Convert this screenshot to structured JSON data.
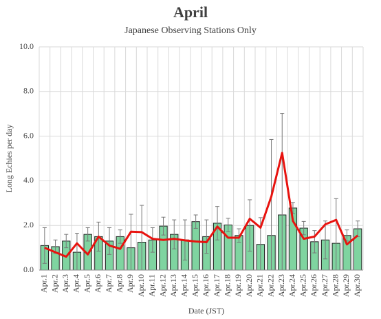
{
  "chart_data": {
    "type": "bar",
    "title": "April",
    "subtitle": "Japanese Observing Stations Only",
    "x_label": "Date (JST)",
    "y_label": "Long Echies per day",
    "categories": [
      "Apr.1",
      "Apr.2",
      "Apr.3",
      "Apr.4",
      "Apr.5",
      "Apr.6",
      "Apr.7",
      "Apr.8",
      "Apr.9",
      "Apr.10",
      "Apr.11",
      "Apr.12",
      "Apr.13",
      "Apr.14",
      "Apr.15",
      "Apr.16",
      "Apr.17",
      "Apr.18",
      "Apr.19",
      "Apr.20",
      "Apr.21",
      "Apr.22",
      "Apr.23",
      "Apr.24",
      "Apr.25",
      "Apr.26",
      "Apr.27",
      "Apr.28",
      "Apr.29",
      "Apr.30"
    ],
    "series": [
      {
        "type": "bar",
        "color": "#7fd4a0",
        "values": [
          1.1,
          1.05,
          1.3,
          0.8,
          1.6,
          1.5,
          1.3,
          1.5,
          1.0,
          1.25,
          1.35,
          1.97,
          1.6,
          1.35,
          2.17,
          1.5,
          2.1,
          2.02,
          1.55,
          2.0,
          1.15,
          1.55,
          2.47,
          2.78,
          1.88,
          1.27,
          1.35,
          1.2,
          1.55,
          1.85
        ],
        "errors": [
          0.8,
          0.3,
          0.3,
          0.85,
          0.3,
          0.65,
          0.6,
          0.3,
          1.5,
          1.65,
          0.55,
          0.4,
          0.65,
          0.9,
          0.3,
          0.75,
          0.75,
          0.3,
          0.3,
          1.15,
          1.2,
          4.3,
          4.55,
          0.25,
          0.3,
          0.5,
          0.85,
          2.0,
          0.25,
          0.35
        ]
      },
      {
        "type": "line",
        "color": "#e8130f",
        "values": [
          1.0,
          0.8,
          0.6,
          1.2,
          0.7,
          1.5,
          1.1,
          0.95,
          1.72,
          1.7,
          1.4,
          1.35,
          1.4,
          1.33,
          1.28,
          1.25,
          1.95,
          1.45,
          1.45,
          2.3,
          1.9,
          3.3,
          5.25,
          2.2,
          1.4,
          1.5,
          2.05,
          2.25,
          1.15,
          1.55
        ]
      }
    ],
    "ylim": [
      0,
      10
    ],
    "yticks": [
      {
        "value": 0,
        "label": "0.0"
      },
      {
        "value": 2,
        "label": "2.0"
      },
      {
        "value": 4,
        "label": "4.0"
      },
      {
        "value": 6,
        "label": "6.0"
      },
      {
        "value": 8,
        "label": "8.0"
      },
      {
        "value": 10,
        "label": "10.0"
      }
    ],
    "grid": true
  }
}
